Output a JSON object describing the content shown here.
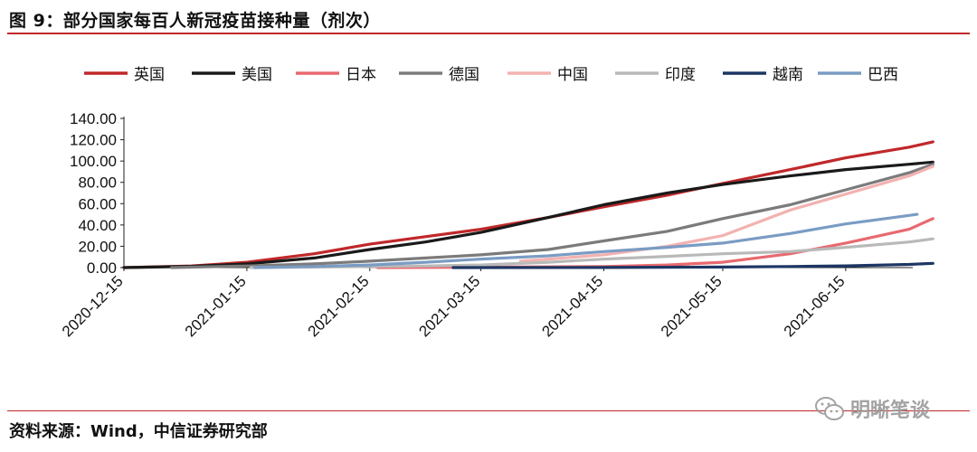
{
  "header": {
    "title": "图 9：部分国家每百人新冠疫苗接种量（剂次）"
  },
  "footer": {
    "source": "资料来源：Wind，中信证券研究部",
    "watermark": "明晰笔谈"
  },
  "chart_data": {
    "type": "line",
    "title": "图 9：部分国家每百人新冠疫苗接种量（剂次）",
    "xlabel": "",
    "ylabel": "",
    "ylim": [
      0,
      140
    ],
    "yticks": [
      "0.00",
      "20.00",
      "40.00",
      "60.00",
      "80.00",
      "100.00",
      "120.00",
      "140.00"
    ],
    "xlim": [
      "2020-12-15",
      "2021-07-01"
    ],
    "xticks": [
      "2020-12-15",
      "2021-01-15",
      "2021-02-15",
      "2021-03-15",
      "2021-04-15",
      "2021-05-15",
      "2021-06-15"
    ],
    "grid": false,
    "legend_position": "top",
    "series": [
      {
        "name": "英国",
        "color": "#c0282a",
        "points": [
          [
            "2020-12-15",
            0
          ],
          [
            "2021-01-01",
            1.5
          ],
          [
            "2021-01-15",
            5
          ],
          [
            "2021-02-01",
            13
          ],
          [
            "2021-02-15",
            22
          ],
          [
            "2021-03-01",
            29
          ],
          [
            "2021-03-15",
            36
          ],
          [
            "2021-04-01",
            47
          ],
          [
            "2021-04-15",
            57
          ],
          [
            "2021-05-01",
            68
          ],
          [
            "2021-05-15",
            79
          ],
          [
            "2021-06-01",
            92
          ],
          [
            "2021-06-15",
            103
          ],
          [
            "2021-07-01",
            113
          ],
          [
            "2021-07-07",
            118
          ]
        ]
      },
      {
        "name": "美国",
        "color": "#1a1a1a",
        "points": [
          [
            "2020-12-15",
            0
          ],
          [
            "2021-01-01",
            1.2
          ],
          [
            "2021-01-15",
            3.5
          ],
          [
            "2021-02-01",
            9
          ],
          [
            "2021-02-15",
            17
          ],
          [
            "2021-03-01",
            24
          ],
          [
            "2021-03-15",
            33
          ],
          [
            "2021-04-01",
            47
          ],
          [
            "2021-04-15",
            59
          ],
          [
            "2021-05-01",
            70
          ],
          [
            "2021-05-15",
            78
          ],
          [
            "2021-06-01",
            86
          ],
          [
            "2021-06-15",
            92
          ],
          [
            "2021-07-01",
            97
          ],
          [
            "2021-07-07",
            99
          ]
        ]
      },
      {
        "name": "日本",
        "color": "#e8696f",
        "points": [
          [
            "2021-02-17",
            0
          ],
          [
            "2021-03-15",
            0.3
          ],
          [
            "2021-04-15",
            1
          ],
          [
            "2021-05-01",
            2.5
          ],
          [
            "2021-05-15",
            5
          ],
          [
            "2021-06-01",
            13
          ],
          [
            "2021-06-15",
            23
          ],
          [
            "2021-07-01",
            36
          ],
          [
            "2021-07-07",
            46
          ]
        ]
      },
      {
        "name": "德国",
        "color": "#7b7b7b",
        "points": [
          [
            "2020-12-27",
            0
          ],
          [
            "2021-01-15",
            1.5
          ],
          [
            "2021-02-01",
            3.5
          ],
          [
            "2021-02-15",
            6
          ],
          [
            "2021-03-01",
            9
          ],
          [
            "2021-03-15",
            12
          ],
          [
            "2021-04-01",
            17
          ],
          [
            "2021-04-15",
            25
          ],
          [
            "2021-05-01",
            34
          ],
          [
            "2021-05-15",
            46
          ],
          [
            "2021-06-01",
            59
          ],
          [
            "2021-06-15",
            73
          ],
          [
            "2021-07-01",
            89
          ],
          [
            "2021-07-07",
            97
          ]
        ]
      },
      {
        "name": "中国",
        "color": "#f2b2b0",
        "points": [
          [
            "2021-03-25",
            6
          ],
          [
            "2021-04-01",
            8
          ],
          [
            "2021-04-15",
            12
          ],
          [
            "2021-05-01",
            20
          ],
          [
            "2021-05-15",
            30
          ],
          [
            "2021-06-01",
            54
          ],
          [
            "2021-06-15",
            69
          ],
          [
            "2021-07-01",
            86
          ],
          [
            "2021-07-07",
            95
          ]
        ]
      },
      {
        "name": "印度",
        "color": "#b9b9b9",
        "points": [
          [
            "2021-01-16",
            0
          ],
          [
            "2021-02-01",
            0.5
          ],
          [
            "2021-02-15",
            1
          ],
          [
            "2021-03-01",
            1.5
          ],
          [
            "2021-03-15",
            2.5
          ],
          [
            "2021-04-01",
            5
          ],
          [
            "2021-04-15",
            8
          ],
          [
            "2021-05-01",
            10.5
          ],
          [
            "2021-05-15",
            13
          ],
          [
            "2021-06-01",
            15
          ],
          [
            "2021-06-15",
            19
          ],
          [
            "2021-07-01",
            24
          ],
          [
            "2021-07-07",
            27
          ]
        ]
      },
      {
        "name": "越南",
        "color": "#1d3664",
        "points": [
          [
            "2021-03-08",
            0
          ],
          [
            "2021-04-15",
            0.1
          ],
          [
            "2021-05-15",
            0.5
          ],
          [
            "2021-06-01",
            1
          ],
          [
            "2021-06-15",
            1.6
          ],
          [
            "2021-07-01",
            3
          ],
          [
            "2021-07-07",
            4
          ]
        ]
      },
      {
        "name": "巴西",
        "color": "#7a9cc4",
        "points": [
          [
            "2021-01-17",
            0
          ],
          [
            "2021-02-01",
            1
          ],
          [
            "2021-02-15",
            2.5
          ],
          [
            "2021-03-01",
            5
          ],
          [
            "2021-03-15",
            8
          ],
          [
            "2021-04-01",
            11
          ],
          [
            "2021-04-15",
            15
          ],
          [
            "2021-05-01",
            19
          ],
          [
            "2021-05-15",
            23
          ],
          [
            "2021-06-01",
            32
          ],
          [
            "2021-06-15",
            41
          ],
          [
            "2021-07-01",
            49
          ],
          [
            "2021-07-03",
            50
          ]
        ]
      }
    ]
  }
}
